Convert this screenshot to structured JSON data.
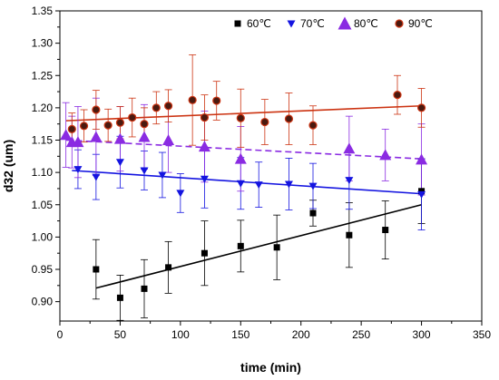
{
  "chart_data": {
    "type": "scatter",
    "title": "",
    "xlabel": "time (min)",
    "ylabel": "d32 (um)",
    "xlim": [
      0,
      350
    ],
    "ylim": [
      0.87,
      1.35
    ],
    "x_ticks": [
      0,
      50,
      100,
      150,
      200,
      250,
      300,
      350
    ],
    "x_tick_labels": [
      "0",
      "50",
      "100",
      "150",
      "200",
      "250",
      "300",
      "350"
    ],
    "y_ticks": [
      0.9,
      0.95,
      1.0,
      1.05,
      1.1,
      1.15,
      1.2,
      1.25,
      1.3,
      1.35
    ],
    "y_tick_labels": [
      "0.90",
      "0.95",
      "1.00",
      "1.05",
      "1.10",
      "1.15",
      "1.20",
      "1.25",
      "1.30",
      "1.35"
    ],
    "legend_position": "top-right",
    "series": [
      {
        "name": "60℃",
        "color": "#000000",
        "marker": "square",
        "points": [
          {
            "x": 30,
            "y": 0.95,
            "err": 0.046
          },
          {
            "x": 50,
            "y": 0.906,
            "err": 0.035
          },
          {
            "x": 70,
            "y": 0.92,
            "err": 0.045
          },
          {
            "x": 90,
            "y": 0.953,
            "err": 0.04
          },
          {
            "x": 120,
            "y": 0.975,
            "err": 0.05
          },
          {
            "x": 150,
            "y": 0.986,
            "err": 0.04
          },
          {
            "x": 180,
            "y": 0.984,
            "err": 0.05
          },
          {
            "x": 210,
            "y": 1.037,
            "err": 0.02
          },
          {
            "x": 240,
            "y": 1.003,
            "err": 0.05
          },
          {
            "x": 270,
            "y": 1.011,
            "err": 0.045
          },
          {
            "x": 300,
            "y": 1.071,
            "err": 0.05
          }
        ],
        "fit": {
          "x": [
            30,
            300
          ],
          "y": [
            0.921,
            1.05
          ],
          "style": "solid"
        }
      },
      {
        "name": "70℃",
        "color": "#1414e0",
        "marker": "triangle-down",
        "points": [
          {
            "x": 15,
            "y": 1.105,
            "err": 0.03
          },
          {
            "x": 30,
            "y": 1.093,
            "err": 0.035
          },
          {
            "x": 50,
            "y": 1.116,
            "err": 0.04
          },
          {
            "x": 70,
            "y": 1.103,
            "err": 0.03
          },
          {
            "x": 85,
            "y": 1.096,
            "err": 0.035
          },
          {
            "x": 100,
            "y": 1.068,
            "err": 0.03
          },
          {
            "x": 120,
            "y": 1.09,
            "err": 0.045
          },
          {
            "x": 150,
            "y": 1.083,
            "err": 0.04
          },
          {
            "x": 165,
            "y": 1.081,
            "err": 0.035
          },
          {
            "x": 190,
            "y": 1.082,
            "err": 0.04
          },
          {
            "x": 210,
            "y": 1.079,
            "err": 0.035
          },
          {
            "x": 240,
            "y": 1.088,
            "err": 0.045
          },
          {
            "x": 300,
            "y": 1.066,
            "err": 0.055
          }
        ],
        "fit": {
          "x": [
            10,
            300
          ],
          "y": [
            1.103,
            1.067
          ],
          "style": "solid"
        }
      },
      {
        "name": "80℃",
        "color": "#8a2be2",
        "marker": "triangle-up",
        "points": [
          {
            "x": 5,
            "y": 1.158,
            "err": 0.05
          },
          {
            "x": 10,
            "y": 1.147,
            "err": 0.04
          },
          {
            "x": 15,
            "y": 1.147,
            "err": 0.055
          },
          {
            "x": 30,
            "y": 1.155,
            "err": 0.06
          },
          {
            "x": 50,
            "y": 1.152,
            "err": 0.05
          },
          {
            "x": 70,
            "y": 1.155,
            "err": 0.05
          },
          {
            "x": 90,
            "y": 1.15,
            "err": 0.05
          },
          {
            "x": 120,
            "y": 1.14,
            "err": 0.055
          },
          {
            "x": 150,
            "y": 1.121,
            "err": 0.05
          },
          {
            "x": 240,
            "y": 1.137,
            "err": 0.05
          },
          {
            "x": 270,
            "y": 1.127,
            "err": 0.04
          },
          {
            "x": 300,
            "y": 1.12,
            "err": 0.055
          }
        ],
        "fit": {
          "x": [
            5,
            300
          ],
          "y": [
            1.15,
            1.121
          ],
          "style": "dashed"
        }
      },
      {
        "name": "90℃",
        "color": "#cc3311",
        "marker": "circle",
        "points": [
          {
            "x": 10,
            "y": 1.167,
            "err": 0.025
          },
          {
            "x": 20,
            "y": 1.172,
            "err": 0.025
          },
          {
            "x": 30,
            "y": 1.197,
            "err": 0.03
          },
          {
            "x": 40,
            "y": 1.173,
            "err": 0.025
          },
          {
            "x": 50,
            "y": 1.177,
            "err": 0.025
          },
          {
            "x": 60,
            "y": 1.185,
            "err": 0.03
          },
          {
            "x": 70,
            "y": 1.175,
            "err": 0.025
          },
          {
            "x": 80,
            "y": 1.2,
            "err": 0.025
          },
          {
            "x": 90,
            "y": 1.203,
            "err": 0.025
          },
          {
            "x": 110,
            "y": 1.212,
            "err": 0.07
          },
          {
            "x": 120,
            "y": 1.185,
            "err": 0.035
          },
          {
            "x": 130,
            "y": 1.211,
            "err": 0.03
          },
          {
            "x": 150,
            "y": 1.184,
            "err": 0.045
          },
          {
            "x": 170,
            "y": 1.178,
            "err": 0.035
          },
          {
            "x": 190,
            "y": 1.183,
            "err": 0.04
          },
          {
            "x": 210,
            "y": 1.173,
            "err": 0.03
          },
          {
            "x": 280,
            "y": 1.22,
            "err": 0.03
          },
          {
            "x": 300,
            "y": 1.2,
            "err": 0.03
          }
        ],
        "fit": {
          "x": [
            5,
            300
          ],
          "y": [
            1.18,
            1.203
          ],
          "style": "solid"
        }
      }
    ]
  }
}
